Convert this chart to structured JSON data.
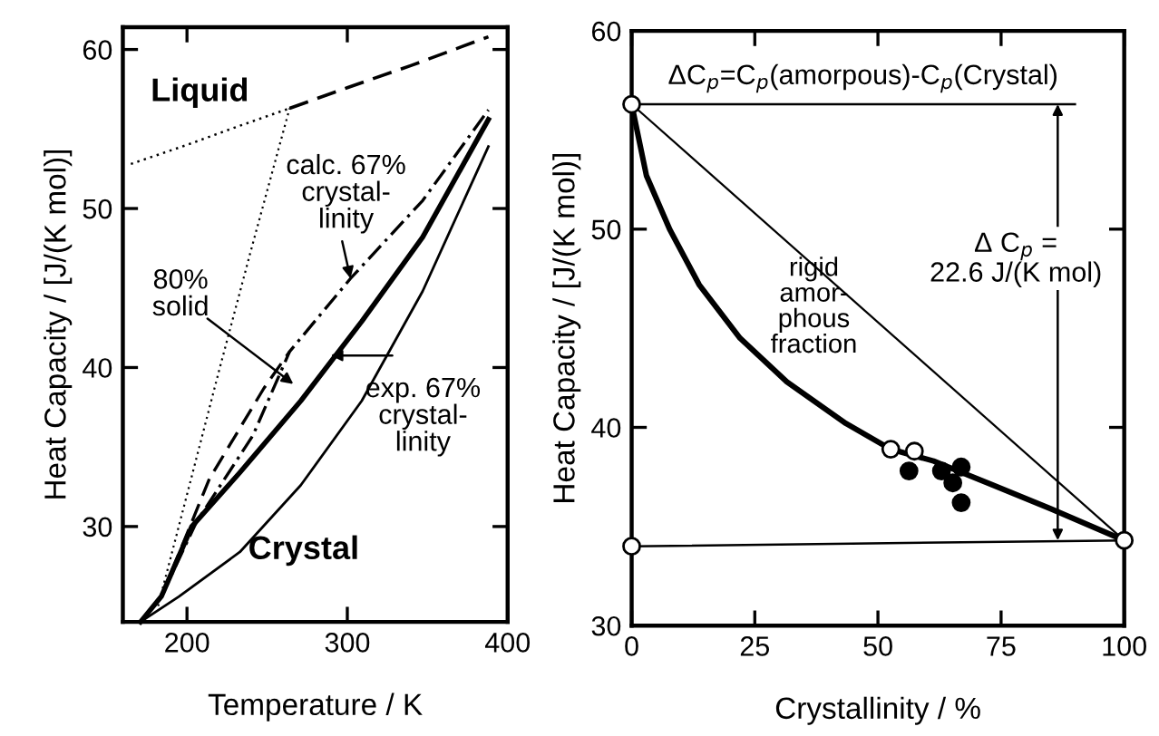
{
  "chart_data": [
    {
      "type": "line",
      "xlabel": "Temperature / K",
      "ylabel": "Heat Capacity / [J/(K mol)]",
      "xlim": [
        160,
        400
      ],
      "ylim": [
        24,
        61.4
      ],
      "xticks": [
        200,
        300,
        400
      ],
      "yticks": [
        30,
        40,
        50,
        60
      ],
      "grid": false,
      "legend": false,
      "series": [
        {
          "color": "#000000",
          "line_style": "dashed",
          "x": [
            264,
            300,
            340,
            388
          ],
          "values": [
            56.3,
            57.6,
            59.0,
            60.8
          ]
        },
        {
          "color": "#000000",
          "line_style": "dotted",
          "x": [
            165,
            200,
            230,
            264
          ],
          "values": [
            52.8,
            54.0,
            55.1,
            56.3
          ]
        },
        {
          "color": "#000000",
          "line_style": "dotted",
          "x": [
            182,
            200,
            220,
            240,
            264
          ],
          "values": [
            25.0,
            32.0,
            39.8,
            47.4,
            56.3
          ]
        },
        {
          "color": "#000000",
          "line_style": "solid",
          "x": [
            171,
            195,
            233,
            271,
            309,
            347,
            388
          ],
          "values": [
            24.0,
            25.6,
            28.4,
            32.6,
            37.9,
            44.8,
            53.9
          ]
        },
        {
          "color": "#000000",
          "line_style": "solid",
          "x": [
            171,
            184,
            203,
            233,
            271,
            309,
            347,
            388
          ],
          "values": [
            24.0,
            25.6,
            30.0,
            33.4,
            37.9,
            42.9,
            48.2,
            55.6
          ]
        },
        {
          "color": "#000000",
          "line_style": "dashdot",
          "x": [
            184,
            206,
            241,
            264,
            302,
            347,
            388
          ],
          "values": [
            25.6,
            30.3,
            35.7,
            41.0,
            45.6,
            50.5,
            56.2
          ]
        },
        {
          "color": "#000000",
          "line_style": "dashed",
          "x": [
            184,
            214,
            248,
            264
          ],
          "values": [
            25.6,
            33.0,
            38.7,
            41.0
          ]
        }
      ],
      "annotations": [
        "Liquid",
        "Crystal",
        {
          "text": "calc. 67%\ncrystal-\nlinity",
          "x": 302,
          "y": 45.6
        },
        "80%\nsolid",
        "exp. 67%\ncrystal-\nlinity"
      ]
    },
    {
      "type": "line",
      "xlabel": "Crystallinity / %",
      "ylabel": "Heat Capacity / [J/(K mol)]",
      "xlim": [
        0,
        100
      ],
      "ylim": [
        30,
        60
      ],
      "xticks": [
        0,
        25,
        50,
        75,
        100
      ],
      "yticks": [
        30,
        40,
        50,
        60
      ],
      "grid": false,
      "legend": false,
      "series": [
        {
          "color": "#000000",
          "line_style": "solid",
          "x": [
            0,
            3,
            7.7,
            13.7,
            22,
            31.5,
            43.5,
            52.6,
            61.3,
            73.2,
            85,
            100
          ],
          "values": [
            56.3,
            52.7,
            50.0,
            47.2,
            44.5,
            42.3,
            40.2,
            38.9,
            38.3,
            37.1,
            35.9,
            34.3
          ]
        },
        {
          "color": "#000000",
          "line_style": "solid",
          "x": [
            0,
            100
          ],
          "values": [
            56.3,
            34.3
          ]
        },
        {
          "color": "#000000",
          "line_style": "solid",
          "x": [
            0,
            100
          ],
          "values": [
            34.0,
            34.3
          ]
        },
        {
          "type": "scatter",
          "color": "#ffffff",
          "marker": "circle",
          "x": [
            0,
            0,
            100,
            52.6,
            57.4
          ],
          "values": [
            56.3,
            34.0,
            34.3,
            38.9,
            38.8
          ]
        },
        {
          "type": "scatter",
          "color": "#000000",
          "marker": "circle",
          "x": [
            56.3,
            62.9,
            66.9,
            65.2,
            66.9
          ],
          "values": [
            37.8,
            37.8,
            38.0,
            37.2,
            36.2
          ]
        }
      ],
      "ref_lines": [
        {
          "axis": "y",
          "value": 56.3
        }
      ],
      "annotations": [
        "rigid\namor-\nphous\nfraction",
        "ΔC$_{p}$=C$_{p}$(amorpous)-C$_{p}$(Crystal)",
        "Δ C$_{p}$ =\n22.6 J/(K mol)"
      ]
    }
  ]
}
